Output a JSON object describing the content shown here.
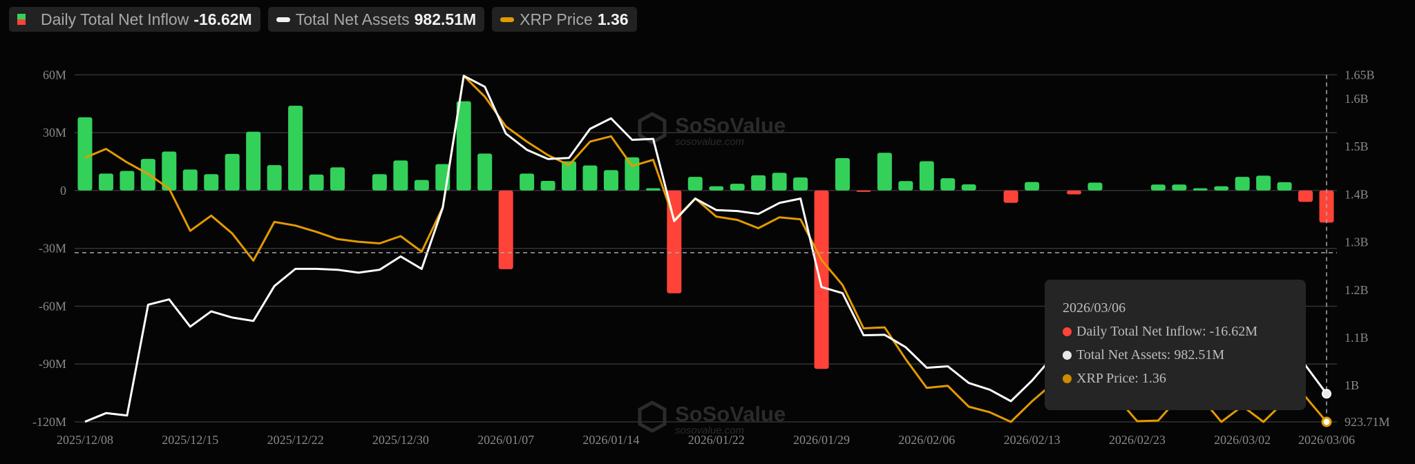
{
  "legend": [
    {
      "label": "Daily Total Net Inflow",
      "value": "-16.62M",
      "icon": "green-red-bar-swatch"
    },
    {
      "label": "Total Net Assets",
      "value": "982.51M",
      "icon": "white-line-swatch"
    },
    {
      "label": "XRP Price",
      "value": "1.36",
      "icon": "orange-line-swatch"
    }
  ],
  "tooltip": {
    "date": "2026/03/06",
    "rows": [
      {
        "text": "Daily Total Net Inflow: -16.62M",
        "color": "#ff4338"
      },
      {
        "text": "Total Net Assets: 982.51M",
        "color": "#e8e8e8"
      },
      {
        "text": "XRP Price: 1.36",
        "color": "#d08a00"
      }
    ]
  },
  "watermark": {
    "brand": "SoSoValue",
    "site": "sosovalue.com"
  },
  "colors": {
    "inflow_positive": "#33d15a",
    "inflow_negative": "#ff4338",
    "net_assets": "#ffffff",
    "price": "#e39a00",
    "grid": "#333333",
    "background": "#050505"
  },
  "chart_data": {
    "type": "bar+line",
    "categories": [
      "2025/12/08",
      "2025/12/09",
      "2025/12/10",
      "2025/12/11",
      "2025/12/12",
      "2025/12/15",
      "2025/12/16",
      "2025/12/17",
      "2025/12/18",
      "2025/12/19",
      "2025/12/22",
      "2025/12/23",
      "2025/12/24",
      "2025/12/26",
      "2025/12/29",
      "2025/12/30",
      "2025/12/31",
      "2026/01/02",
      "2026/01/05",
      "2026/01/06",
      "2026/01/07",
      "2026/01/08",
      "2026/01/09",
      "2026/01/12",
      "2026/01/13",
      "2026/01/14",
      "2026/01/15",
      "2026/01/16",
      "2026/01/20",
      "2026/01/21",
      "2026/01/22",
      "2026/01/23",
      "2026/01/26",
      "2026/01/27",
      "2026/01/28",
      "2026/01/29",
      "2026/02/02",
      "2026/02/03",
      "2026/02/04",
      "2026/02/05",
      "2026/02/06",
      "2026/02/09",
      "2026/02/10",
      "2026/02/11",
      "2026/02/12",
      "2026/02/13",
      "2026/02/17",
      "2026/02/18",
      "2026/02/19",
      "2026/02/20",
      "2026/02/23",
      "2026/02/24",
      "2026/02/25",
      "2026/02/26",
      "2026/02/27",
      "2026/03/02",
      "2026/03/03",
      "2026/03/04",
      "2026/03/05",
      "2026/03/06"
    ],
    "x_tick_labels": [
      "2025/12/08",
      "2025/12/15",
      "2025/12/22",
      "2025/12/30",
      "2026/01/07",
      "2026/01/14",
      "2026/01/22",
      "2026/01/29",
      "2026/02/06",
      "2026/02/13",
      "2026/02/23",
      "2026/03/02",
      "2026/03/06"
    ],
    "series": [
      {
        "name": "Daily Total Net Inflow",
        "type": "bar",
        "axis": "left",
        "unit": "M",
        "values": [
          38.0,
          8.8,
          10.2,
          16.4,
          20.2,
          10.9,
          8.5,
          19.0,
          30.5,
          13.2,
          44.0,
          8.3,
          12.0,
          0,
          8.5,
          15.6,
          5.5,
          13.7,
          46.3,
          19.2,
          -40.8,
          8.8,
          5.0,
          15.2,
          13.0,
          10.6,
          17.2,
          1.2,
          -53.3,
          7.1,
          2.2,
          3.5,
          7.9,
          9.2,
          6.8,
          -92.5,
          16.8,
          -0.3,
          19.6,
          4.9,
          15.2,
          6.4,
          3.2,
          0,
          -6.4,
          4.4,
          0,
          -2.0,
          4.1,
          0,
          0,
          3.1,
          3.1,
          1.2,
          2.2,
          7.1,
          7.7,
          4.3,
          -5.9,
          -16.62
        ]
      },
      {
        "name": "Total Net Assets",
        "type": "line",
        "axis": "right",
        "unit": "B",
        "values": [
          0.924,
          0.942,
          0.937,
          1.169,
          1.18,
          1.123,
          1.155,
          1.142,
          1.135,
          1.208,
          1.244,
          1.244,
          1.242,
          1.236,
          1.242,
          1.27,
          1.244,
          1.372,
          1.648,
          1.625,
          1.527,
          1.493,
          1.474,
          1.476,
          1.537,
          1.559,
          1.514,
          1.516,
          1.344,
          1.391,
          1.367,
          1.365,
          1.359,
          1.382,
          1.391,
          1.206,
          1.193,
          1.105,
          1.106,
          1.08,
          1.037,
          1.04,
          1.005,
          0.991,
          0.967,
          1.01,
          1.061,
          1.108,
          1.127,
          1.09,
          1.052,
          1.052,
          1.08,
          1.061,
          1.033,
          1.061,
          1.042,
          1.08,
          1.042,
          0.98251
        ]
      },
      {
        "name": "XRP Price",
        "type": "line",
        "axis": "hidden",
        "values": [
          2.159,
          2.186,
          2.145,
          2.11,
          2.066,
          1.938,
          1.984,
          1.93,
          1.848,
          1.965,
          1.954,
          1.935,
          1.913,
          1.905,
          1.9,
          1.922,
          1.875,
          2.009,
          2.407,
          2.344,
          2.254,
          2.208,
          2.167,
          2.137,
          2.208,
          2.224,
          2.134,
          2.153,
          1.971,
          2.036,
          1.981,
          1.971,
          1.946,
          1.979,
          1.973,
          1.85,
          1.774,
          1.643,
          1.646,
          1.55,
          1.463,
          1.469,
          1.406,
          1.389,
          1.36,
          1.422,
          1.477,
          1.545,
          1.531,
          1.436,
          1.362,
          1.364,
          1.436,
          1.436,
          1.36,
          1.408,
          1.36,
          1.422,
          1.436,
          1.36
        ]
      }
    ],
    "left_axis": {
      "ticks": [
        "60M",
        "30M",
        "0",
        "-30M",
        "-60M",
        "-90M",
        "-120M"
      ],
      "tick_values": [
        60,
        30,
        0,
        -30,
        -60,
        -90,
        -120
      ],
      "range": [
        -120,
        60
      ]
    },
    "right_axis": {
      "ticks": [
        "1.65B",
        "1.6B",
        "1.5B",
        "1.4B",
        "1.3B",
        "1.2B",
        "1.1B",
        "1B",
        "923.71M"
      ],
      "tick_values": [
        1.65,
        1.6,
        1.5,
        1.4,
        1.3,
        1.2,
        1.1,
        1.0,
        0.92371
      ],
      "range": [
        0.92371,
        1.65
      ]
    },
    "price_axis_range": [
      1.36,
      2.41
    ],
    "grid": true,
    "hover_index": 59,
    "legend_position": "top-left"
  }
}
